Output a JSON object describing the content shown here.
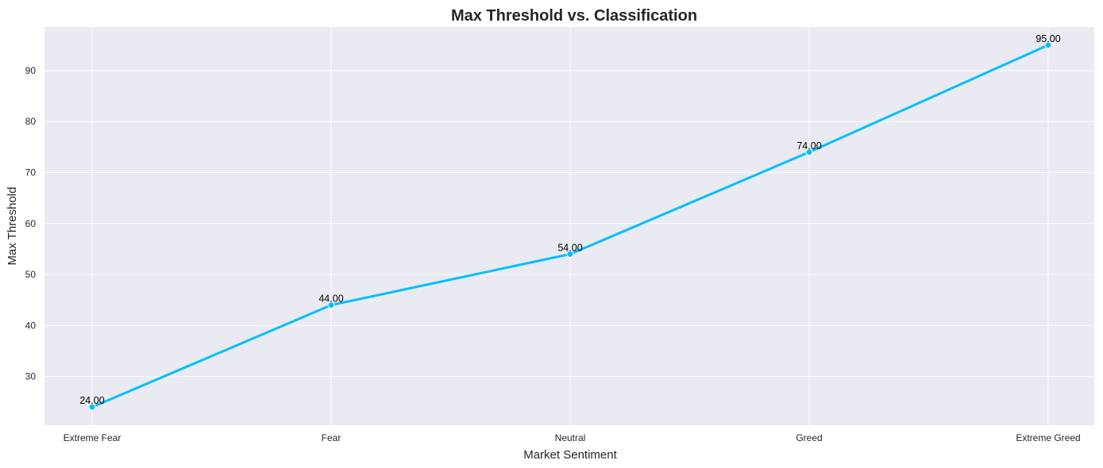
{
  "chart_data": {
    "type": "line",
    "title": "Max Threshold vs. Classification",
    "xlabel": "Market Sentiment",
    "ylabel": "Max Threshold",
    "categories": [
      "Extreme Fear",
      "Fear",
      "Neutral",
      "Greed",
      "Extreme Greed"
    ],
    "series": [
      {
        "values": [
          24,
          44,
          54,
          74,
          95
        ],
        "data_labels": [
          "24.00",
          "44.00",
          "54.00",
          "74.00",
          "95.00"
        ]
      }
    ],
    "ylim": [
      20.45,
      98.55
    ],
    "yticks": [
      30,
      40,
      50,
      60,
      70,
      80,
      90
    ],
    "grid": true,
    "legend": "none",
    "colors": {
      "line": "#00bfff",
      "plot_background": "#eaeaf2",
      "grid": "#ffffff",
      "text": "#262626"
    }
  }
}
